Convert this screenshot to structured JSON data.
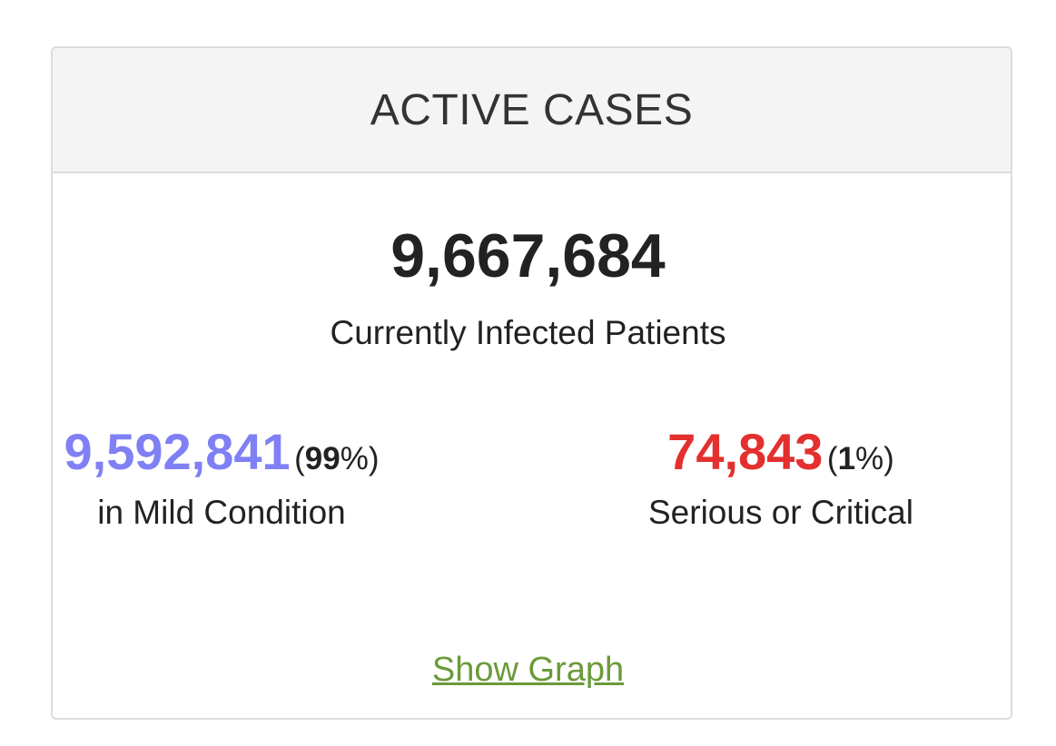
{
  "panel": {
    "title": "ACTIVE CASES"
  },
  "total": {
    "value": "9,667,684",
    "label": "Currently Infected Patients"
  },
  "mild": {
    "value": "9,592,841",
    "percent_open": "(",
    "percent": "99",
    "percent_close": "%)",
    "label": "in Mild Condition",
    "color": "#8080f5"
  },
  "serious": {
    "value": "74,843",
    "percent_open": "(",
    "percent": "1",
    "percent_close": "%)",
    "label": "Serious or Critical",
    "color": "#e3302e"
  },
  "link": {
    "label": "Show Graph",
    "color": "#6b9a3a"
  }
}
